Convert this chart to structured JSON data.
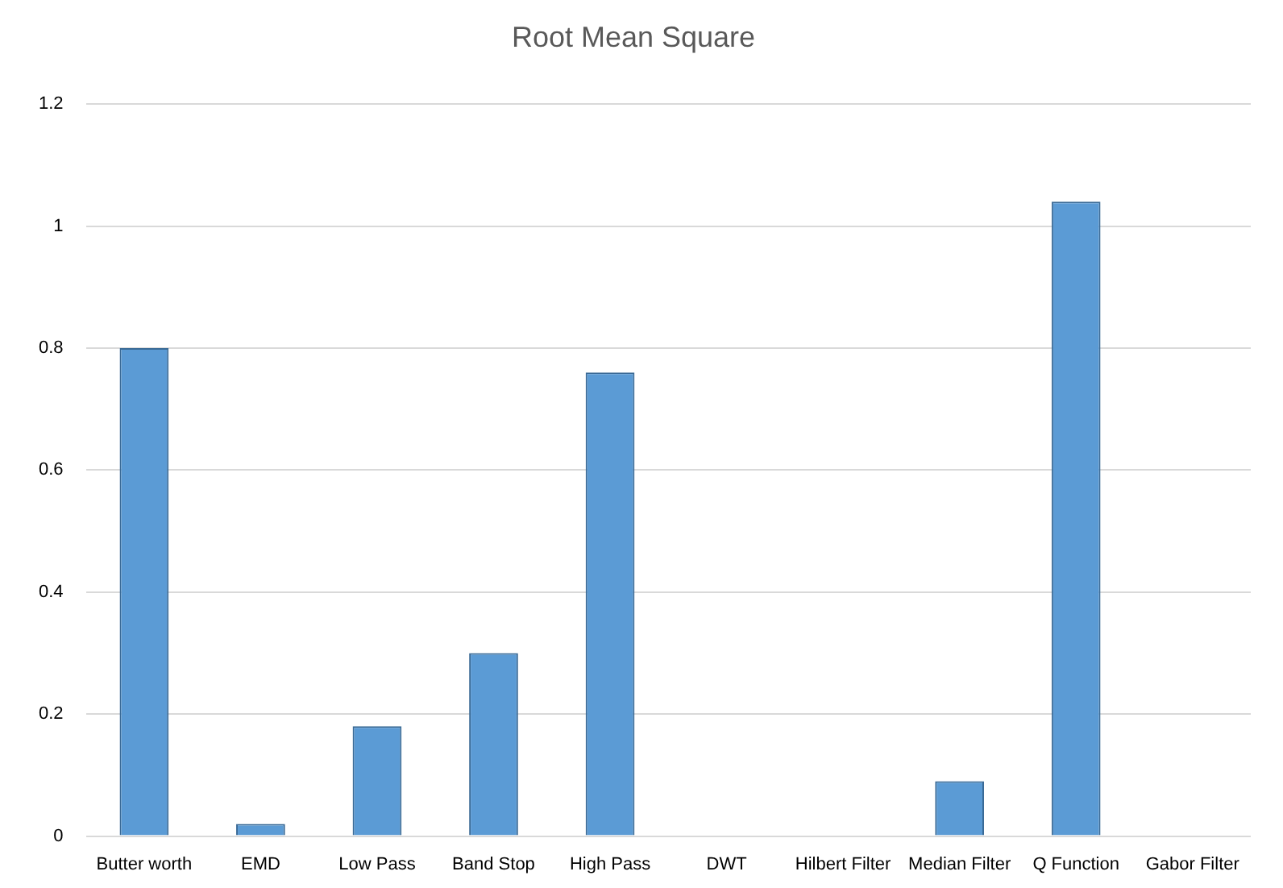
{
  "chart_data": {
    "type": "bar",
    "title": "Root Mean Square",
    "categories": [
      "Butter worth",
      "EMD",
      "Low Pass",
      "Band Stop",
      "High Pass",
      "DWT",
      "Hilbert Filter",
      "Median Filter",
      "Q Function",
      "Gabor Filter"
    ],
    "values": [
      0.8,
      0.02,
      0.18,
      0.3,
      0.76,
      0,
      0,
      0.09,
      1.04,
      0
    ],
    "color": "#5b9bd5",
    "ylim": [
      0,
      1.2
    ],
    "yticks": [
      0,
      0.2,
      0.4,
      0.6,
      0.8,
      1,
      1.2
    ],
    "grid": "y",
    "legend": false
  }
}
